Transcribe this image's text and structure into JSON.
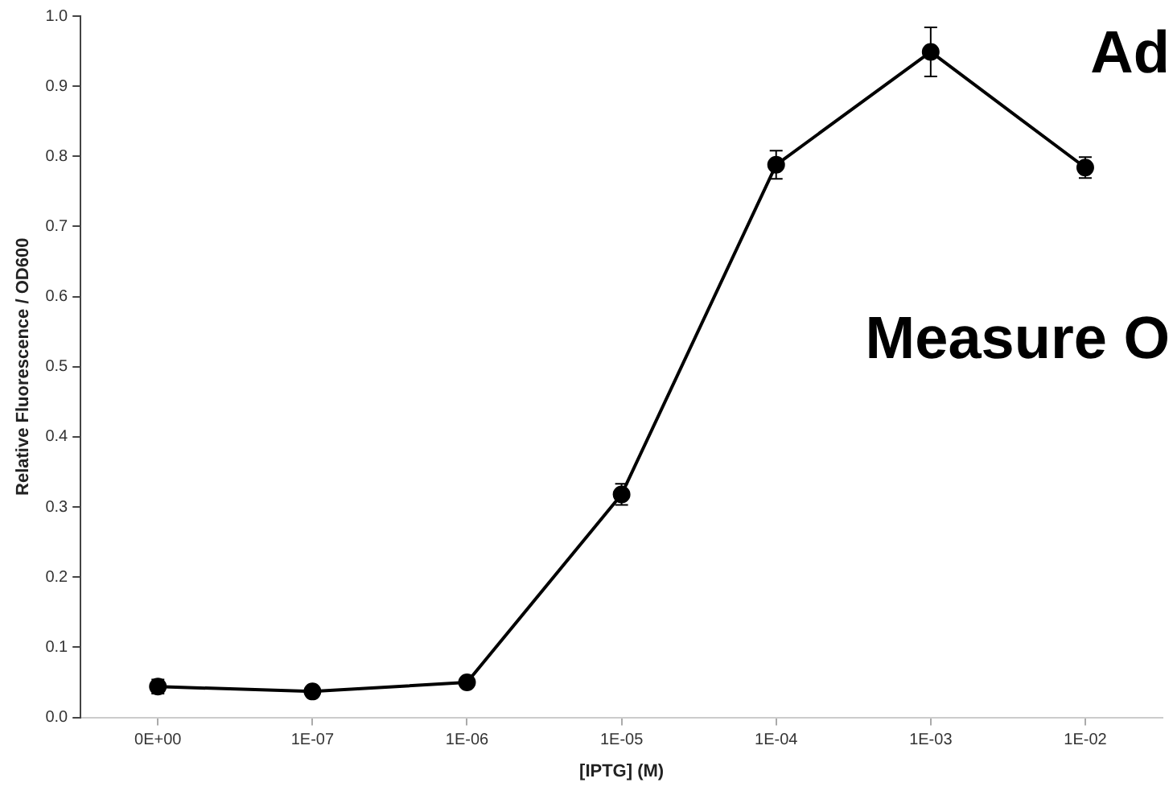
{
  "chart_data": {
    "type": "line",
    "xlabel": "[IPTG] (M)",
    "ylabel": "Relative Fluorescence / OD600",
    "categories": [
      "0E+00",
      "1E-07",
      "1E-06",
      "1E-05",
      "1E-04",
      "1E-03",
      "1E-02"
    ],
    "series": [
      {
        "color": "#000000",
        "values": [
          0.044,
          0.037,
          0.05,
          0.318,
          0.788,
          0.949,
          0.784
        ],
        "errors": [
          0.01,
          0.004,
          0.004,
          0.015,
          0.02,
          0.035,
          0.015
        ]
      }
    ],
    "ylim": [
      0,
      1
    ],
    "yticks": [
      {
        "value": 0,
        "label": "0.0"
      },
      {
        "value": 0.1,
        "label": "0.1"
      },
      {
        "value": 0.2,
        "label": "0.2"
      },
      {
        "value": 0.3,
        "label": "0.3"
      },
      {
        "value": 0.4,
        "label": "0.4"
      },
      {
        "value": 0.5,
        "label": "0.5"
      },
      {
        "value": 0.6,
        "label": "0.6"
      },
      {
        "value": 0.7,
        "label": "0.7"
      },
      {
        "value": 0.8,
        "label": "0.8"
      },
      {
        "value": 0.9,
        "label": "0.9"
      },
      {
        "value": 1,
        "label": "1.0"
      }
    ],
    "marker": "circle",
    "line_style": "solid",
    "grid": false,
    "legend": false,
    "annotations": [
      "Ad",
      "Measure O"
    ]
  }
}
